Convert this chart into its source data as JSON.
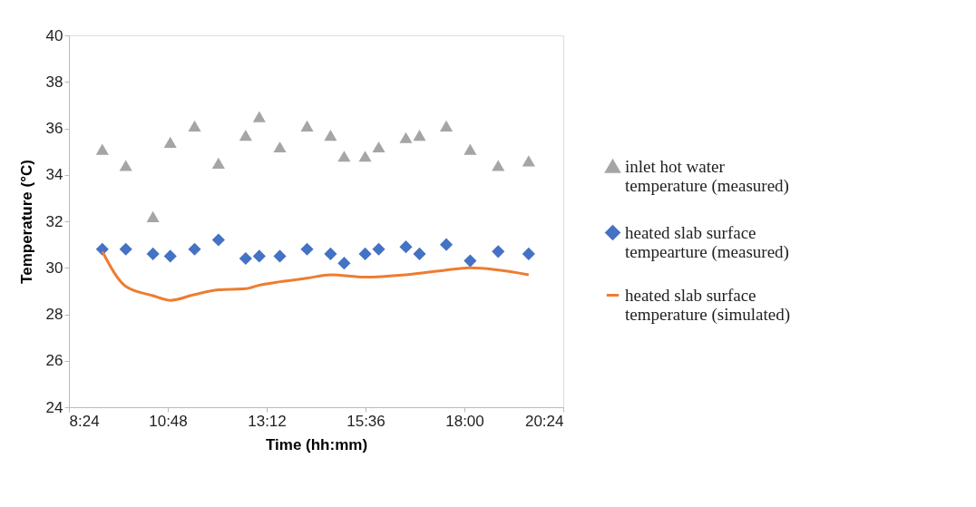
{
  "chart_data": {
    "type": "scatter",
    "xlabel": "Time (hh:mm)",
    "ylabel": "Temperature (°C)",
    "x": [
      9.21,
      9.78,
      10.44,
      10.86,
      11.45,
      12.03,
      12.69,
      13.02,
      13.52,
      14.18,
      14.75,
      15.08,
      15.59,
      15.92,
      16.58,
      16.91,
      17.56,
      18.14,
      18.82,
      19.56
    ],
    "series": [
      {
        "name": "inlet hot water temperature (measured)",
        "color": "#a5a5a5",
        "marker": "triangle",
        "values": [
          35.1,
          34.4,
          32.2,
          35.4,
          36.1,
          34.5,
          35.7,
          36.5,
          35.2,
          36.1,
          35.7,
          34.8,
          34.8,
          35.2,
          35.6,
          35.7,
          36.1,
          35.1,
          34.4,
          34.6
        ]
      },
      {
        "name": "heated slab surface tempearture (measured)",
        "color": "#4472c4",
        "marker": "diamond",
        "values": [
          30.8,
          30.8,
          30.6,
          30.5,
          30.8,
          31.2,
          30.4,
          30.5,
          30.5,
          30.8,
          30.6,
          30.2,
          30.6,
          30.8,
          30.9,
          30.6,
          31.0,
          30.3,
          30.7,
          30.6
        ]
      },
      {
        "name": "heated slab surface temperature (simulated)",
        "color": "#ed7d31",
        "type": "line",
        "marker": "none",
        "x": [
          9.21,
          9.78,
          10.44,
          10.86,
          11.45,
          12.03,
          12.69,
          13.02,
          13.52,
          14.18,
          14.75,
          15.59,
          16.58,
          17.56,
          18.14,
          19.56
        ],
        "values": [
          30.7,
          29.2,
          28.8,
          28.6,
          28.85,
          29.05,
          29.1,
          29.25,
          29.4,
          29.55,
          29.7,
          29.6,
          29.7,
          29.9,
          30.0,
          29.7
        ]
      }
    ],
    "xlim": [
      8.4,
      20.4
    ],
    "xticks": [
      {
        "value": 8.4,
        "label": "8:24"
      },
      {
        "value": 10.8,
        "label": "10:48"
      },
      {
        "value": 13.2,
        "label": "13:12"
      },
      {
        "value": 15.6,
        "label": "15:36"
      },
      {
        "value": 18.0,
        "label": "18:00"
      },
      {
        "value": 20.4,
        "label": "20:24"
      }
    ],
    "ylim": [
      24,
      40
    ],
    "yticks": [
      24,
      26,
      28,
      30,
      32,
      34,
      36,
      38,
      40
    ],
    "grid": false,
    "legend": "right"
  }
}
